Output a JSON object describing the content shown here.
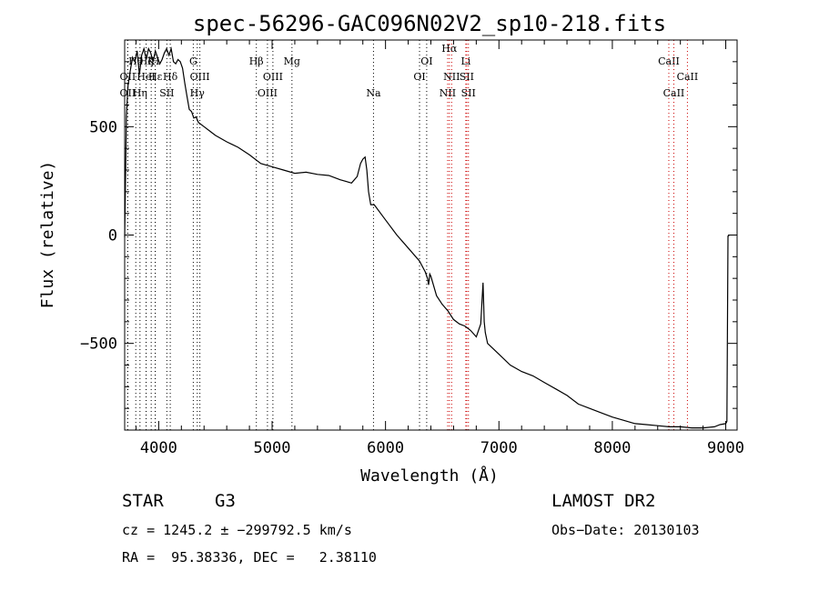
{
  "chart_data": {
    "type": "line",
    "title": "spec-56296-GAC096N02V2_sp10-218.fits",
    "xlabel": "Wavelength (Å)",
    "ylabel": "Flux (relative)",
    "xlim": [
      3700,
      9100
    ],
    "ylim": [
      -900,
      900
    ],
    "x_ticks": [
      4000,
      5000,
      6000,
      7000,
      8000,
      9000
    ],
    "x_tick_labels": [
      "4000",
      "5000",
      "6000",
      "7000",
      "8000",
      "9000"
    ],
    "y_ticks": [
      -500,
      0,
      500
    ],
    "y_tick_labels": [
      "−500",
      "0",
      "500"
    ],
    "series": [
      {
        "color": "#000000",
        "x": [
          3700,
          3715,
          3730,
          3750,
          3770,
          3790,
          3810,
          3830,
          3850,
          3870,
          3890,
          3910,
          3930,
          3950,
          3970,
          3990,
          4010,
          4030,
          4050,
          4070,
          4090,
          4110,
          4130,
          4150,
          4170,
          4190,
          4210,
          4230,
          4250,
          4270,
          4290,
          4310,
          4330,
          4350,
          4400,
          4450,
          4500,
          4600,
          4700,
          4800,
          4900,
          5000,
          5100,
          5200,
          5300,
          5400,
          5500,
          5600,
          5700,
          5750,
          5780,
          5800,
          5820,
          5835,
          5850,
          5870,
          5900,
          6000,
          6100,
          6200,
          6300,
          6350,
          6370,
          6380,
          6390,
          6400,
          6450,
          6500,
          6550,
          6600,
          6650,
          6700,
          6750,
          6800,
          6840,
          6860,
          6870,
          6880,
          6900,
          7000,
          7100,
          7200,
          7300,
          7400,
          7500,
          7600,
          7700,
          7800,
          7900,
          8000,
          8100,
          8200,
          8300,
          8400,
          8500,
          8600,
          8700,
          8800,
          8900,
          8950,
          9000,
          9010,
          9020,
          9030
        ],
        "y": [
          -10,
          550,
          690,
          760,
          820,
          800,
          850,
          740,
          830,
          860,
          810,
          860,
          840,
          800,
          850,
          820,
          790,
          810,
          840,
          860,
          830,
          860,
          800,
          790,
          810,
          800,
          770,
          700,
          640,
          580,
          570,
          540,
          545,
          520,
          500,
          480,
          460,
          430,
          405,
          370,
          330,
          315,
          300,
          285,
          290,
          280,
          275,
          255,
          240,
          270,
          330,
          350,
          360,
          300,
          200,
          140,
          140,
          70,
          0,
          -60,
          -120,
          -170,
          -200,
          -230,
          -180,
          -190,
          -280,
          -320,
          -350,
          -390,
          -410,
          -420,
          -440,
          -470,
          -410,
          -220,
          -400,
          -450,
          -500,
          -550,
          -600,
          -630,
          -650,
          -680,
          -710,
          -740,
          -780,
          -800,
          -820,
          -840,
          -855,
          -870,
          -875,
          -880,
          -885,
          -885,
          -890,
          -890,
          -885,
          -875,
          -870,
          -860,
          -5,
          -5
        ]
      }
    ],
    "line_markers": [
      {
        "label": "OII",
        "x": 3727,
        "row": 2,
        "color": "#000000"
      },
      {
        "label": "OII",
        "x": 3727,
        "row": 3,
        "color": "#000000"
      },
      {
        "label": "Hθ",
        "x": 3798,
        "row": 1,
        "color": "#000000"
      },
      {
        "label": "Hη",
        "x": 3835,
        "row": 3,
        "color": "#000000"
      },
      {
        "label": "Hζ",
        "x": 3889,
        "row": 1,
        "color": "#000000"
      },
      {
        "label": "HeI",
        "x": 3889,
        "row": 2,
        "color": "#000000"
      },
      {
        "label": "K",
        "x": 3934,
        "row": 1,
        "color": "#000000"
      },
      {
        "label": "H",
        "x": 3969,
        "row": 1,
        "color": "#000000"
      },
      {
        "label": "Hε",
        "x": 3970,
        "row": 2,
        "color": "#000000"
      },
      {
        "label": "SII",
        "x": 4072,
        "row": 3,
        "color": "#000000"
      },
      {
        "label": "Hδ",
        "x": 4102,
        "row": 2,
        "color": "#000000"
      },
      {
        "label": "G",
        "x": 4305,
        "row": 1,
        "color": "#000000"
      },
      {
        "label": "Hγ",
        "x": 4340,
        "row": 3,
        "color": "#000000"
      },
      {
        "label": "OIII",
        "x": 4363,
        "row": 2,
        "color": "#000000"
      },
      {
        "label": "Hβ",
        "x": 4861,
        "row": 1,
        "color": "#000000"
      },
      {
        "label": "OIII",
        "x": 4959,
        "row": 3,
        "color": "#000000"
      },
      {
        "label": "OIII",
        "x": 5007,
        "row": 2,
        "color": "#000000"
      },
      {
        "label": "Mg",
        "x": 5175,
        "row": 1,
        "color": "#000000"
      },
      {
        "label": "Na",
        "x": 5894,
        "row": 3,
        "color": "#000000"
      },
      {
        "label": "OI",
        "x": 6300,
        "row": 2,
        "color": "#000000"
      },
      {
        "label": "OI",
        "x": 6363,
        "row": 1,
        "color": "#000000"
      },
      {
        "label": "NII",
        "x": 6548,
        "row": 3,
        "color": "#cc0000"
      },
      {
        "label": "Hα",
        "x": 6563,
        "row": 0,
        "color": "#cc0000"
      },
      {
        "label": "NII",
        "x": 6583,
        "row": 2,
        "color": "#cc0000"
      },
      {
        "label": "Li",
        "x": 6708,
        "row": 1,
        "color": "#cc0000"
      },
      {
        "label": "SII",
        "x": 6716,
        "row": 2,
        "color": "#cc0000"
      },
      {
        "label": "SII",
        "x": 6731,
        "row": 3,
        "color": "#cc0000"
      },
      {
        "label": "CaII",
        "x": 8498,
        "row": 1,
        "color": "#cc0000"
      },
      {
        "label": "CaII",
        "x": 8542,
        "row": 3,
        "color": "#cc0000"
      },
      {
        "label": "CaII",
        "x": 8662,
        "row": 2,
        "color": "#cc0000"
      }
    ]
  },
  "info": {
    "object_type": "STAR",
    "subclass": "G3",
    "survey": "LAMOST DR2",
    "redshift": "cz = 1245.2 ± −299792.5 km/s",
    "obs_date": "Obs−Date: 20130103",
    "coords": "RA =  95.38336, DEC =   2.38110"
  }
}
